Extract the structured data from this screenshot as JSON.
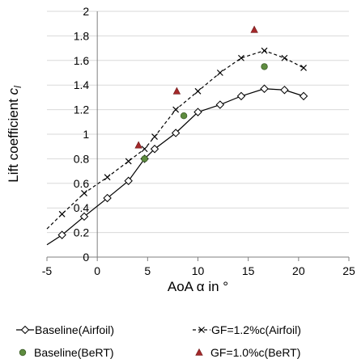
{
  "chart_data": {
    "type": "scatter",
    "xlabel": "AoA α in °",
    "ylabel_main": "Lift coefficient ",
    "ylabel_sub": "c",
    "ylabel_subscript": "l",
    "xlim": [
      -5,
      25
    ],
    "ylim": [
      0,
      2
    ],
    "xticks": [
      -5,
      0,
      5,
      10,
      15,
      20,
      25
    ],
    "yticks": [
      0,
      0.2,
      0.4,
      0.6,
      0.8,
      1,
      1.2,
      1.4,
      1.6,
      1.8,
      2
    ],
    "ytick_labels": [
      "0",
      "0.2",
      "0.4",
      "0.6",
      "0.8",
      "1",
      "1.2",
      "1.4",
      "1.6",
      "1.8",
      "2"
    ],
    "grid": "horizontal",
    "legend_position": "bottom",
    "series": [
      {
        "name": "Baseline(Airfoil)",
        "marker": "diamond",
        "line": "solid",
        "color": "#000000",
        "x": [
          -5,
          -3.5,
          -1.3,
          1.0,
          3.1,
          4.7,
          5.7,
          7.8,
          10.0,
          12.2,
          14.3,
          16.6,
          18.6,
          20.5
        ],
        "y": [
          0.1,
          0.18,
          0.33,
          0.48,
          0.62,
          0.8,
          0.88,
          1.01,
          1.18,
          1.24,
          1.31,
          1.37,
          1.36,
          1.31
        ]
      },
      {
        "name": "GF=1.2%c(Airfoil)",
        "marker": "x",
        "line": "dashed",
        "color": "#000000",
        "x": [
          -5,
          -3.5,
          -1.3,
          1.0,
          3.1,
          4.7,
          5.7,
          7.8,
          10.0,
          12.2,
          14.3,
          16.6,
          18.6,
          20.5
        ],
        "y": [
          0.23,
          0.35,
          0.52,
          0.65,
          0.78,
          0.88,
          0.98,
          1.2,
          1.35,
          1.5,
          1.62,
          1.68,
          1.62,
          1.54
        ]
      },
      {
        "name": "Baseline(BeRT)",
        "marker": "circle",
        "line": "none",
        "color": "#5e8c3f",
        "x": [
          4.7,
          8.6,
          16.6
        ],
        "y": [
          0.8,
          1.15,
          1.55
        ]
      },
      {
        "name": "GF=1.0%c(BeRT)",
        "marker": "triangle",
        "line": "none",
        "color": "#a4282a",
        "x": [
          4.1,
          7.9,
          15.6
        ],
        "y": [
          0.91,
          1.35,
          1.85
        ]
      }
    ]
  }
}
